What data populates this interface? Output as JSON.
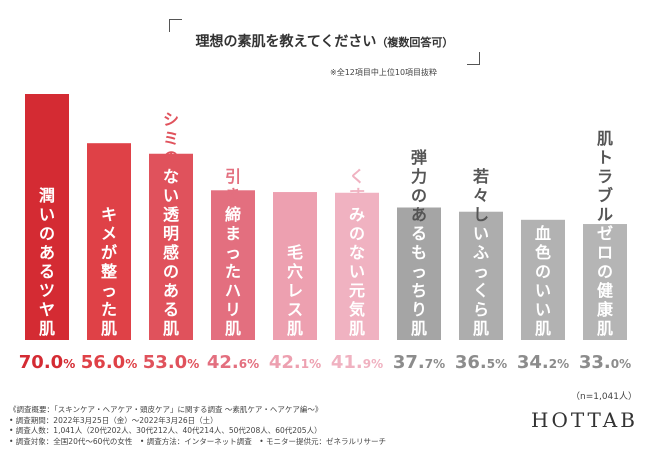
{
  "title": {
    "main": "理想の素肌を教えてください",
    "sub": "（複数回答可）"
  },
  "note": "※全12項目中上位10項目抜粋",
  "sample_size": "（n=1,041人）",
  "logo": "HOTTAB",
  "footer": [
    "《調査概要：「スキンケア・ヘアケア・頭皮ケア」に関する調査 ～素肌ケア・ヘアケア編～》",
    "• 調査期間：2022年3月25日（金）～2022年3月26日（土）",
    "• 調査人数：1,041人（20代202人、30代212人、40代214人、50代208人、60代205人）",
    "• 調査対象：全国20代～60代の女性　• 調査方法：インターネット調査　• モニター提供元：ゼネラルリサーチ"
  ],
  "chart_data": {
    "type": "bar",
    "categories": [
      "潤いのあるツヤ肌",
      "キメが整った肌",
      "シミのない透明感のある肌",
      "引き締まったハリ肌",
      "毛穴レス肌",
      "くすみのない元気肌",
      "弾力のあるもっちり肌",
      "若々しいふっくら肌",
      "血色のいい肌",
      "肌トラブルゼロの健康肌"
    ],
    "values": [
      70.0,
      56.0,
      53.0,
      42.6,
      42.1,
      41.9,
      37.7,
      36.5,
      34.2,
      33.0
    ],
    "value_labels": [
      {
        "int": "70.0",
        "unit": "%"
      },
      {
        "int": "56.0",
        "unit": "%"
      },
      {
        "int": "53.0",
        "unit": "%"
      },
      {
        "int": "42.",
        "unit": "6%"
      },
      {
        "int": "42.",
        "unit": "1%"
      },
      {
        "int": "41.",
        "unit": "9%"
      },
      {
        "int": "37.",
        "unit": "7%"
      },
      {
        "int": "36.",
        "unit": "5%"
      },
      {
        "int": "34.",
        "unit": "2%"
      },
      {
        "int": "33.",
        "unit": "0%"
      }
    ],
    "bar_colors": [
      "#d42b33",
      "#df4147",
      "#e0525c",
      "#e36f7f",
      "#eda0b0",
      "#f0b2c1",
      "#a5a5a5",
      "#adadad",
      "#b2b2b2",
      "#b5b5b5"
    ],
    "value_colors": [
      "#d42b33",
      "#df4147",
      "#e0525c",
      "#e36f7f",
      "#eda0b0",
      "#f0b2c1",
      "#8c8c8c",
      "#8c8c8c",
      "#8c8c8c",
      "#8c8c8c"
    ],
    "label_colors": [
      "#ffffff",
      "#ffffff",
      "#ffffff",
      "#ffffff",
      "#ffffff",
      "#ffffff",
      "#ffffff",
      "#ffffff",
      "#ffffff",
      "#ffffff"
    ],
    "above_label_colors": [
      "#d42b33",
      "#df4147",
      "#e0525c",
      "#e36f7f",
      "#eda0b0",
      "#f0b2c1",
      "#555555",
      "#555555",
      "#555555",
      "#555555"
    ],
    "ylim": [
      0,
      70
    ],
    "grid": false
  }
}
